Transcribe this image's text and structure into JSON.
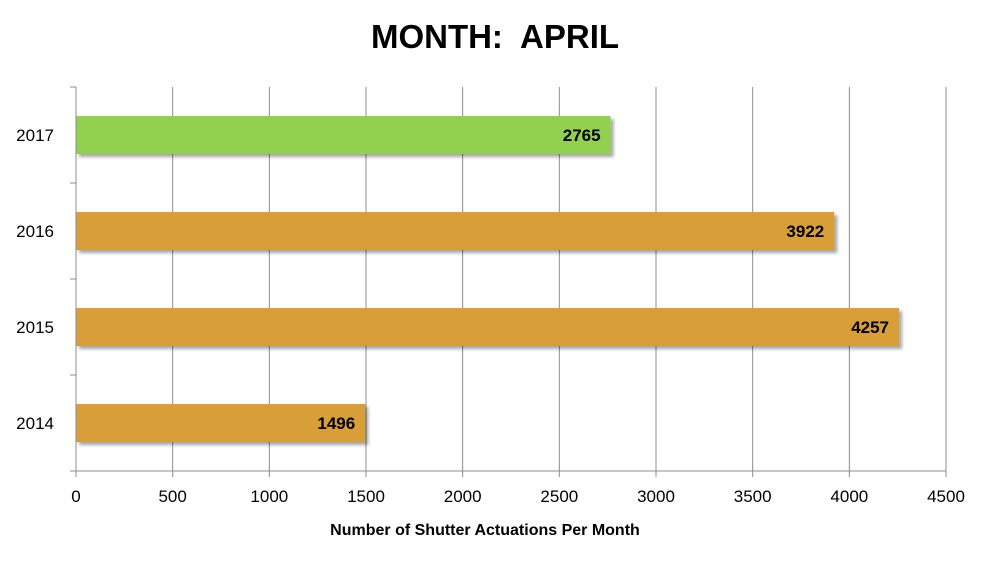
{
  "chart_data": {
    "type": "bar",
    "orientation": "horizontal",
    "title": "MONTH:  APRIL",
    "xlabel": "Number of Shutter Actuations Per Month",
    "ylabel": "",
    "categories": [
      "2014",
      "2015",
      "2016",
      "2017"
    ],
    "values": [
      1496,
      4257,
      3922,
      2765
    ],
    "bar_colors": [
      "#D89E38",
      "#D89E38",
      "#D89E38",
      "#92D050"
    ],
    "xlim": [
      0,
      4500
    ],
    "xticks": [
      0,
      500,
      1000,
      1500,
      2000,
      2500,
      3000,
      3500,
      4000,
      4500
    ],
    "grid": true,
    "data_labels": true,
    "legend": "none"
  }
}
